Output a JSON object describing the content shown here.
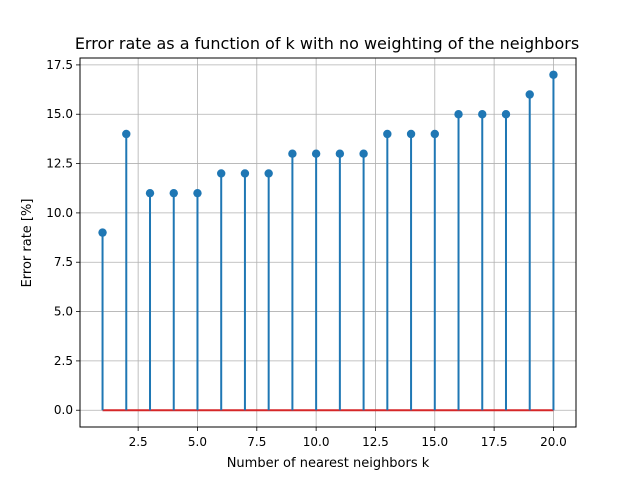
{
  "chart_data": {
    "type": "stem",
    "title": "Error rate as a function of k with no weighting of the neighbors",
    "xlabel": "Number of nearest neighbors k",
    "ylabel": "Error rate [%]",
    "x": [
      1,
      2,
      3,
      4,
      5,
      6,
      7,
      8,
      9,
      10,
      11,
      12,
      13,
      14,
      15,
      16,
      17,
      18,
      19,
      20
    ],
    "y": [
      9,
      14,
      11,
      11,
      11,
      12,
      12,
      12,
      13,
      13,
      13,
      13,
      14,
      14,
      14,
      15,
      15,
      15,
      16,
      17
    ],
    "xlim": [
      0.05,
      20.95
    ],
    "ylim": [
      -0.85,
      17.85
    ],
    "xticks": [
      2.5,
      5.0,
      7.5,
      10.0,
      12.5,
      15.0,
      17.5,
      20.0
    ],
    "xtick_labels": [
      "2.5",
      "5.0",
      "7.5",
      "10.0",
      "12.5",
      "15.0",
      "17.5",
      "20.0"
    ],
    "yticks": [
      0.0,
      2.5,
      5.0,
      7.5,
      10.0,
      12.5,
      15.0,
      17.5
    ],
    "ytick_labels": [
      "0.0",
      "2.5",
      "5.0",
      "7.5",
      "10.0",
      "12.5",
      "15.0",
      "17.5"
    ],
    "grid": true,
    "colors": {
      "stem": "#1f77b4",
      "marker": "#1f77b4",
      "baseline": "#d62728",
      "grid": "#b0b0b0"
    }
  }
}
